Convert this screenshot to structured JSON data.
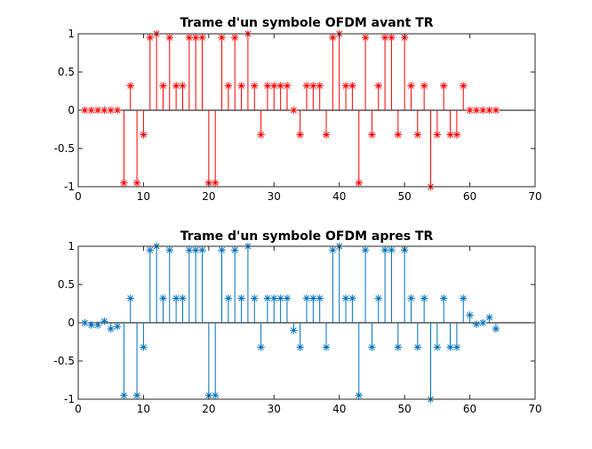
{
  "chart_data": [
    {
      "type": "stem",
      "title": "Trame d'un symbole OFDM avant TR",
      "xlabel": "",
      "ylabel": "",
      "xlim": [
        0,
        70
      ],
      "ylim": [
        -1,
        1
      ],
      "xticks": [
        0,
        10,
        20,
        30,
        40,
        50,
        60,
        70
      ],
      "yticks": [
        -1,
        -0.5,
        0,
        0.5,
        1
      ],
      "yticklabels": [
        "-1",
        "-0.5",
        "0",
        "0.5",
        "1"
      ],
      "grid": false,
      "color": "#ff0000",
      "marker": "asterisk",
      "x": [
        1,
        2,
        3,
        4,
        5,
        6,
        7,
        8,
        9,
        10,
        11,
        12,
        13,
        14,
        15,
        16,
        17,
        18,
        19,
        20,
        21,
        22,
        23,
        24,
        25,
        26,
        27,
        28,
        29,
        30,
        31,
        32,
        33,
        34,
        35,
        36,
        37,
        38,
        39,
        40,
        41,
        42,
        43,
        44,
        45,
        46,
        47,
        48,
        49,
        50,
        51,
        52,
        53,
        54,
        55,
        56,
        57,
        58,
        59,
        60,
        61,
        62,
        63,
        64
      ],
      "y": [
        0,
        0,
        0,
        0,
        0,
        0,
        -0.95,
        0.32,
        -0.95,
        -0.32,
        0.95,
        1.0,
        0.32,
        0.95,
        0.32,
        0.32,
        0.95,
        0.95,
        0.95,
        -0.95,
        -0.95,
        0.95,
        0.32,
        0.95,
        0.32,
        1.0,
        0.32,
        -0.32,
        0.32,
        0.32,
        0.32,
        0.32,
        0,
        -0.32,
        0.32,
        0.32,
        0.32,
        -0.32,
        0.95,
        1.0,
        0.32,
        0.32,
        -0.95,
        0.95,
        -0.32,
        0.32,
        0.95,
        0.95,
        -0.32,
        0.95,
        0.32,
        -0.32,
        0.32,
        -1.0,
        -0.32,
        0.32,
        -0.32,
        -0.32,
        0.32,
        0,
        0,
        0,
        0,
        0
      ]
    },
    {
      "type": "stem",
      "title": "Trame d'un symbole OFDM apres TR",
      "xlabel": "",
      "ylabel": "",
      "xlim": [
        0,
        70
      ],
      "ylim": [
        -1,
        1
      ],
      "xticks": [
        0,
        10,
        20,
        30,
        40,
        50,
        60,
        70
      ],
      "yticks": [
        -1,
        -0.5,
        0,
        0.5,
        1
      ],
      "yticklabels": [
        "-1",
        "-0.5",
        "0",
        "0.5",
        "1"
      ],
      "grid": false,
      "color": "#0072bd",
      "marker": "asterisk",
      "x": [
        1,
        2,
        3,
        4,
        5,
        6,
        7,
        8,
        9,
        10,
        11,
        12,
        13,
        14,
        15,
        16,
        17,
        18,
        19,
        20,
        21,
        22,
        23,
        24,
        25,
        26,
        27,
        28,
        29,
        30,
        31,
        32,
        33,
        34,
        35,
        36,
        37,
        38,
        39,
        40,
        41,
        42,
        43,
        44,
        45,
        46,
        47,
        48,
        49,
        50,
        51,
        52,
        53,
        54,
        55,
        56,
        57,
        58,
        59,
        60,
        61,
        62,
        63,
        64
      ],
      "y": [
        0,
        -0.03,
        -0.03,
        0.02,
        -0.08,
        -0.05,
        -0.95,
        0.32,
        -0.95,
        -0.32,
        0.95,
        1.0,
        0.32,
        0.95,
        0.32,
        0.32,
        0.95,
        0.95,
        0.95,
        -0.95,
        -0.95,
        0.95,
        0.32,
        0.95,
        0.32,
        1.0,
        0.32,
        -0.32,
        0.32,
        0.32,
        0.32,
        0.32,
        -0.1,
        -0.32,
        0.32,
        0.32,
        0.32,
        -0.32,
        0.95,
        1.0,
        0.32,
        0.32,
        -0.95,
        0.95,
        -0.32,
        0.32,
        0.95,
        0.95,
        -0.32,
        0.95,
        0.32,
        -0.32,
        0.32,
        -1.0,
        -0.32,
        0.32,
        -0.32,
        -0.32,
        0.32,
        0.1,
        -0.02,
        0.0,
        0.07,
        -0.08
      ]
    }
  ]
}
